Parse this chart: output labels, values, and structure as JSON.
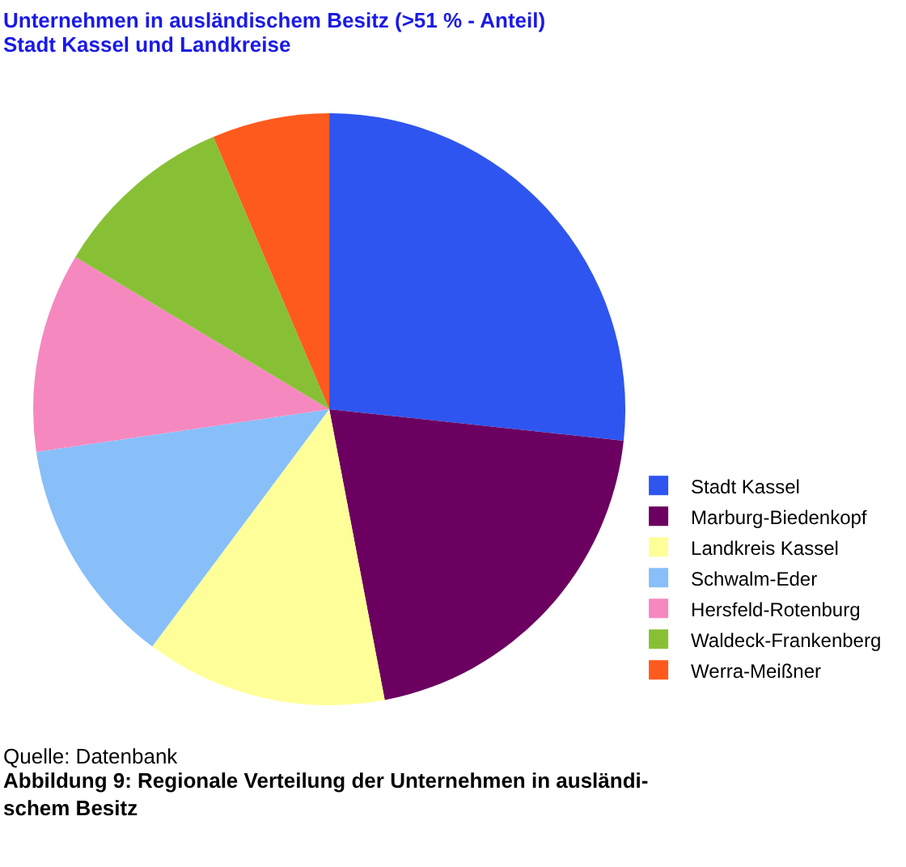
{
  "chart_data": {
    "type": "pie",
    "title": "Unternehmen in ausländischem Besitz (>51 % - Anteil)",
    "subtitle": "Stadt Kassel und Landkreise",
    "categories": [
      "Stadt Kassel",
      "Marburg-Biedenkopf",
      "Landkreis Kassel",
      "Schwalm-Eder",
      "Hersfeld-Rotenburg",
      "Waldeck-Frankenberg",
      "Werra-Meißner"
    ],
    "values": [
      26.7,
      20.3,
      13.2,
      12.5,
      10.9,
      10.0,
      6.4
    ],
    "colors": [
      "#2e55f0",
      "#6b0060",
      "#ffff99",
      "#88bff8",
      "#f688c0",
      "#88c035",
      "#ff5a1e"
    ],
    "legend": "right",
    "annotations": [
      "Quelle: Datenbank",
      "Abbildung 9: Regionale Verteilung der Unternehmen in ausländi-\nschem Besitz"
    ]
  }
}
